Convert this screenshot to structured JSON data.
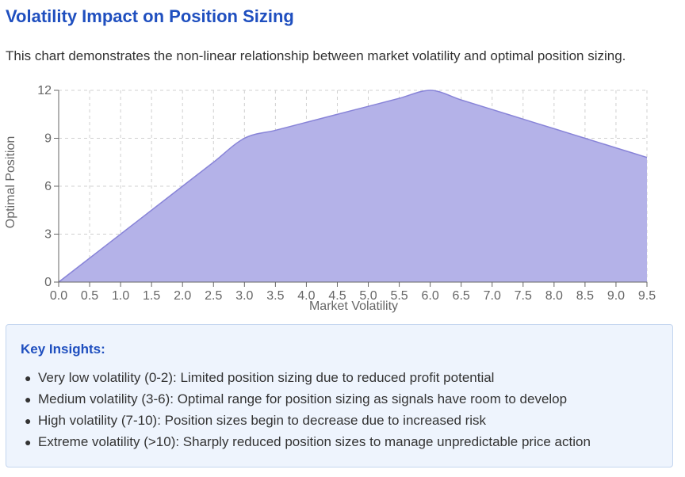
{
  "page": {
    "title": "Volatility Impact on Position Sizing",
    "description": "This chart demonstrates the non-linear relationship between market volatility and optimal position sizing."
  },
  "chart_data": {
    "type": "area",
    "title": "",
    "xlabel": "Market Volatility",
    "ylabel": "Optimal Position",
    "x": [
      0,
      0.5,
      1,
      1.5,
      2,
      2.5,
      3,
      3.5,
      4,
      4.5,
      5,
      5.5,
      6,
      6.5,
      7,
      7.5,
      8,
      8.5,
      9,
      9.5
    ],
    "series": [
      {
        "values": [
          0,
          1.5,
          3,
          4.5,
          6,
          7.5,
          9,
          9.5,
          10,
          10.5,
          11,
          11.5,
          12,
          11.4,
          10.8,
          10.2,
          9.6,
          9,
          8.4,
          7.8
        ]
      }
    ],
    "xticks": [
      "0.0",
      "0.5",
      "1.0",
      "1.5",
      "2.0",
      "2.5",
      "3.0",
      "3.5",
      "4.0",
      "4.5",
      "5.0",
      "5.5",
      "6.0",
      "6.5",
      "7.0",
      "7.5",
      "8.0",
      "8.5",
      "9.0",
      "9.5"
    ],
    "yticks": [
      "0",
      "3",
      "6",
      "9",
      "12"
    ],
    "xlim": [
      0,
      9.5
    ],
    "ylim": [
      0,
      12
    ],
    "grid": true,
    "fill_color": "#b4b2e8",
    "line_color": "#8884d8"
  },
  "insights": {
    "title": "Key Insights:",
    "items": [
      "Very low volatility (0-2): Limited position sizing due to reduced profit potential",
      "Medium volatility (3-6): Optimal range for position sizing as signals have room to develop",
      "High volatility (7-10): Position sizes begin to decrease due to increased risk",
      "Extreme volatility (>10): Sharply reduced position sizes to manage unpredictable price action"
    ]
  },
  "colors": {
    "accent": "#1f4fbf",
    "panel_background": "#eef4fd",
    "panel_border": "#c4d6ef"
  }
}
